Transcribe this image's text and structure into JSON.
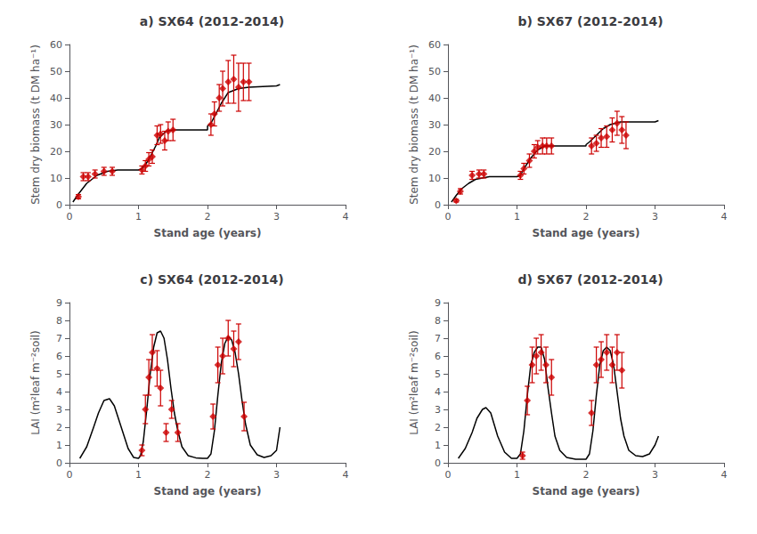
{
  "chart_data": [
    {
      "type": "line",
      "title": "a) SX64 (2012-2014)",
      "xlabel": "Stand age (years)",
      "ylabel": "Stem dry biomass (t DM ha⁻¹)",
      "xlim": [
        0,
        4
      ],
      "xticks": [
        0,
        1,
        2,
        3,
        4
      ],
      "ylim": [
        0,
        60
      ],
      "yticks": [
        0,
        10,
        20,
        30,
        40,
        50,
        60
      ],
      "grid": false,
      "series": [
        {
          "type": "line",
          "color": "#000000",
          "line_style": "solid",
          "x": [
            0.05,
            0.13,
            0.25,
            0.4,
            0.55,
            0.7,
            0.85,
            1.0,
            1.001,
            1.05,
            1.1,
            1.15,
            1.2,
            1.25,
            1.3,
            1.4,
            1.5,
            1.6,
            1.65,
            1.7,
            2.0,
            2.001,
            2.05,
            2.1,
            2.2,
            2.3,
            2.45,
            2.6,
            3.0,
            3.05
          ],
          "values": [
            1.0,
            4.0,
            8.0,
            11.0,
            12.5,
            13.0,
            13.0,
            13.0,
            13.0,
            13.5,
            15.0,
            17.0,
            19.5,
            22.0,
            25.0,
            27.5,
            28.0,
            28.0,
            28.0,
            28.0,
            28.0,
            29.5,
            30.5,
            33.0,
            38.0,
            42.0,
            43.5,
            44.0,
            44.5,
            45.0
          ]
        },
        {
          "type": "scatter",
          "color": "#cc0000",
          "marker": "diamond",
          "x": [
            0.13,
            0.2,
            0.27,
            0.37,
            0.5,
            0.62,
            1.05,
            1.1,
            1.15,
            1.2,
            1.27,
            1.32,
            1.38,
            1.43,
            1.5,
            2.05,
            2.1,
            2.17,
            2.22,
            2.3,
            2.38,
            2.45,
            2.52,
            2.6
          ],
          "values": [
            3.0,
            10.5,
            10.5,
            11.5,
            12.5,
            12.5,
            13.0,
            14.5,
            17.0,
            18.0,
            26.0,
            26.5,
            24.0,
            27.5,
            28.0,
            30.0,
            34.0,
            40.0,
            43.5,
            46.0,
            47.0,
            44.0,
            46.0,
            46.0
          ],
          "yerr": [
            0.8,
            1.5,
            1.5,
            1.5,
            1.5,
            1.5,
            1.5,
            2.0,
            2.5,
            2.5,
            3.5,
            3.5,
            3.5,
            3.5,
            4.0,
            4.0,
            4.5,
            5.0,
            6.5,
            8.0,
            9.0,
            9.0,
            7.0,
            7.0
          ]
        }
      ]
    },
    {
      "type": "line",
      "title": "b) SX67 (2012-2014)",
      "xlabel": "Stand age (years)",
      "ylabel": "Stem dry biomass (t DM ha⁻¹)",
      "xlim": [
        0,
        4
      ],
      "xticks": [
        0,
        1,
        2,
        3,
        4
      ],
      "ylim": [
        0,
        60
      ],
      "yticks": [
        0,
        10,
        20,
        30,
        40,
        50,
        60
      ],
      "grid": false,
      "series": [
        {
          "type": "line",
          "color": "#000000",
          "line_style": "solid",
          "x": [
            0.05,
            0.12,
            0.2,
            0.3,
            0.4,
            0.5,
            0.6,
            0.7,
            0.85,
            1.0,
            1.001,
            1.05,
            1.1,
            1.2,
            1.3,
            1.4,
            1.5,
            1.6,
            2.0,
            2.001,
            2.05,
            2.15,
            2.25,
            2.35,
            2.5,
            2.6,
            3.0,
            3.05
          ],
          "values": [
            1.0,
            3.5,
            6.0,
            8.0,
            9.5,
            10.0,
            10.5,
            10.5,
            10.5,
            10.5,
            10.5,
            11.0,
            13.5,
            17.5,
            20.5,
            22.0,
            22.0,
            22.0,
            22.0,
            22.5,
            23.5,
            26.0,
            28.5,
            30.0,
            31.0,
            31.0,
            31.0,
            31.5
          ]
        },
        {
          "type": "scatter",
          "color": "#cc0000",
          "marker": "diamond",
          "x": [
            0.12,
            0.18,
            0.35,
            0.45,
            0.52,
            1.05,
            1.1,
            1.18,
            1.25,
            1.3,
            1.37,
            1.43,
            1.5,
            2.08,
            2.15,
            2.22,
            2.3,
            2.38,
            2.45,
            2.52,
            2.58
          ],
          "values": [
            1.5,
            5.0,
            11.0,
            11.5,
            11.5,
            11.0,
            13.5,
            16.5,
            20.0,
            21.5,
            22.0,
            22.0,
            22.0,
            22.0,
            23.0,
            25.0,
            25.5,
            28.0,
            30.5,
            28.0,
            26.0
          ],
          "yerr": [
            0.5,
            1.0,
            1.5,
            1.5,
            1.5,
            1.5,
            2.0,
            2.5,
            2.5,
            2.5,
            3.0,
            3.0,
            3.0,
            3.0,
            3.0,
            3.5,
            4.0,
            4.5,
            4.5,
            5.0,
            5.0
          ]
        }
      ]
    },
    {
      "type": "line",
      "title": "c) SX64 (2012-2014)",
      "xlabel": "Stand age (years)",
      "ylabel": "LAI (m²leaf m⁻²soil)",
      "xlim": [
        0,
        4
      ],
      "xticks": [
        0,
        1,
        2,
        3,
        4
      ],
      "ylim": [
        0,
        9
      ],
      "yticks": [
        0,
        1,
        2,
        3,
        4,
        5,
        6,
        7,
        8,
        9
      ],
      "grid": false,
      "series": [
        {
          "type": "line",
          "color": "#000000",
          "line_style": "solid",
          "x": [
            0.15,
            0.25,
            0.35,
            0.42,
            0.5,
            0.58,
            0.65,
            0.75,
            0.85,
            0.93,
            1.0,
            1.001,
            1.03,
            1.07,
            1.12,
            1.17,
            1.22,
            1.27,
            1.32,
            1.37,
            1.42,
            1.47,
            1.52,
            1.57,
            1.63,
            1.72,
            1.83,
            1.93,
            2.0,
            2.001,
            2.05,
            2.1,
            2.15,
            2.2,
            2.25,
            2.3,
            2.35,
            2.4,
            2.45,
            2.5,
            2.55,
            2.62,
            2.72,
            2.82,
            2.92,
            3.0,
            3.05
          ],
          "values": [
            0.25,
            0.9,
            2.0,
            2.8,
            3.5,
            3.6,
            3.2,
            2.0,
            0.8,
            0.3,
            0.25,
            0.25,
            0.4,
            1.2,
            3.0,
            5.0,
            6.5,
            7.3,
            7.4,
            7.0,
            5.8,
            4.2,
            2.8,
            1.8,
            0.9,
            0.4,
            0.28,
            0.25,
            0.25,
            0.25,
            0.5,
            1.8,
            3.8,
            5.6,
            6.7,
            7.1,
            6.9,
            6.2,
            5.0,
            3.5,
            2.2,
            1.0,
            0.45,
            0.3,
            0.4,
            0.7,
            2.0
          ]
        },
        {
          "type": "scatter",
          "color": "#cc0000",
          "marker": "diamond",
          "x": [
            1.05,
            1.1,
            1.15,
            1.2,
            1.27,
            1.32,
            1.4,
            1.48,
            1.57,
            2.08,
            2.15,
            2.22,
            2.3,
            2.38,
            2.45,
            2.53
          ],
          "values": [
            0.7,
            3.0,
            4.8,
            6.2,
            5.3,
            4.2,
            1.7,
            3.0,
            1.7,
            2.6,
            5.5,
            6.0,
            7.0,
            6.4,
            6.8,
            2.6
          ],
          "yerr": [
            0.3,
            0.8,
            1.0,
            1.0,
            1.0,
            1.0,
            0.5,
            0.5,
            0.5,
            0.7,
            1.0,
            1.0,
            1.0,
            1.0,
            1.0,
            0.8
          ]
        }
      ]
    },
    {
      "type": "line",
      "title": "d) SX67 (2012-2014)",
      "xlabel": "Stand age (years)",
      "ylabel": "LAI (m²leaf m⁻²soil)",
      "xlim": [
        0,
        4
      ],
      "xticks": [
        0,
        1,
        2,
        3,
        4
      ],
      "ylim": [
        0,
        9
      ],
      "yticks": [
        0,
        1,
        2,
        3,
        4,
        5,
        6,
        7,
        8,
        9
      ],
      "grid": false,
      "series": [
        {
          "type": "line",
          "color": "#000000",
          "line_style": "solid",
          "x": [
            0.15,
            0.25,
            0.35,
            0.42,
            0.5,
            0.55,
            0.62,
            0.72,
            0.82,
            0.92,
            1.0,
            1.001,
            1.05,
            1.1,
            1.15,
            1.2,
            1.25,
            1.3,
            1.35,
            1.4,
            1.45,
            1.5,
            1.55,
            1.62,
            1.72,
            1.85,
            1.95,
            2.0,
            2.001,
            2.05,
            2.1,
            2.15,
            2.2,
            2.25,
            2.3,
            2.35,
            2.4,
            2.45,
            2.5,
            2.55,
            2.62,
            2.72,
            2.82,
            2.92,
            3.0,
            3.05
          ],
          "values": [
            0.25,
            0.8,
            1.7,
            2.5,
            3.0,
            3.1,
            2.8,
            1.5,
            0.6,
            0.25,
            0.25,
            0.25,
            0.5,
            1.8,
            3.8,
            5.5,
            6.2,
            6.5,
            6.5,
            5.8,
            4.2,
            2.8,
            1.5,
            0.7,
            0.3,
            0.2,
            0.2,
            0.2,
            0.2,
            0.5,
            1.8,
            3.8,
            5.5,
            6.3,
            6.5,
            6.3,
            5.5,
            4.0,
            2.5,
            1.5,
            0.7,
            0.4,
            0.35,
            0.5,
            1.0,
            1.5
          ]
        },
        {
          "type": "scatter",
          "color": "#cc0000",
          "marker": "diamond",
          "x": [
            1.08,
            1.15,
            1.22,
            1.28,
            1.35,
            1.42,
            1.5,
            2.08,
            2.15,
            2.22,
            2.3,
            2.38,
            2.45,
            2.52
          ],
          "values": [
            0.4,
            3.5,
            5.5,
            6.0,
            6.2,
            5.5,
            4.8,
            2.8,
            5.5,
            5.8,
            6.2,
            5.5,
            6.2,
            5.2
          ],
          "yerr": [
            0.2,
            0.8,
            1.0,
            1.0,
            1.0,
            1.0,
            1.0,
            0.7,
            1.0,
            1.0,
            1.0,
            1.0,
            1.0,
            1.0
          ]
        }
      ]
    }
  ]
}
